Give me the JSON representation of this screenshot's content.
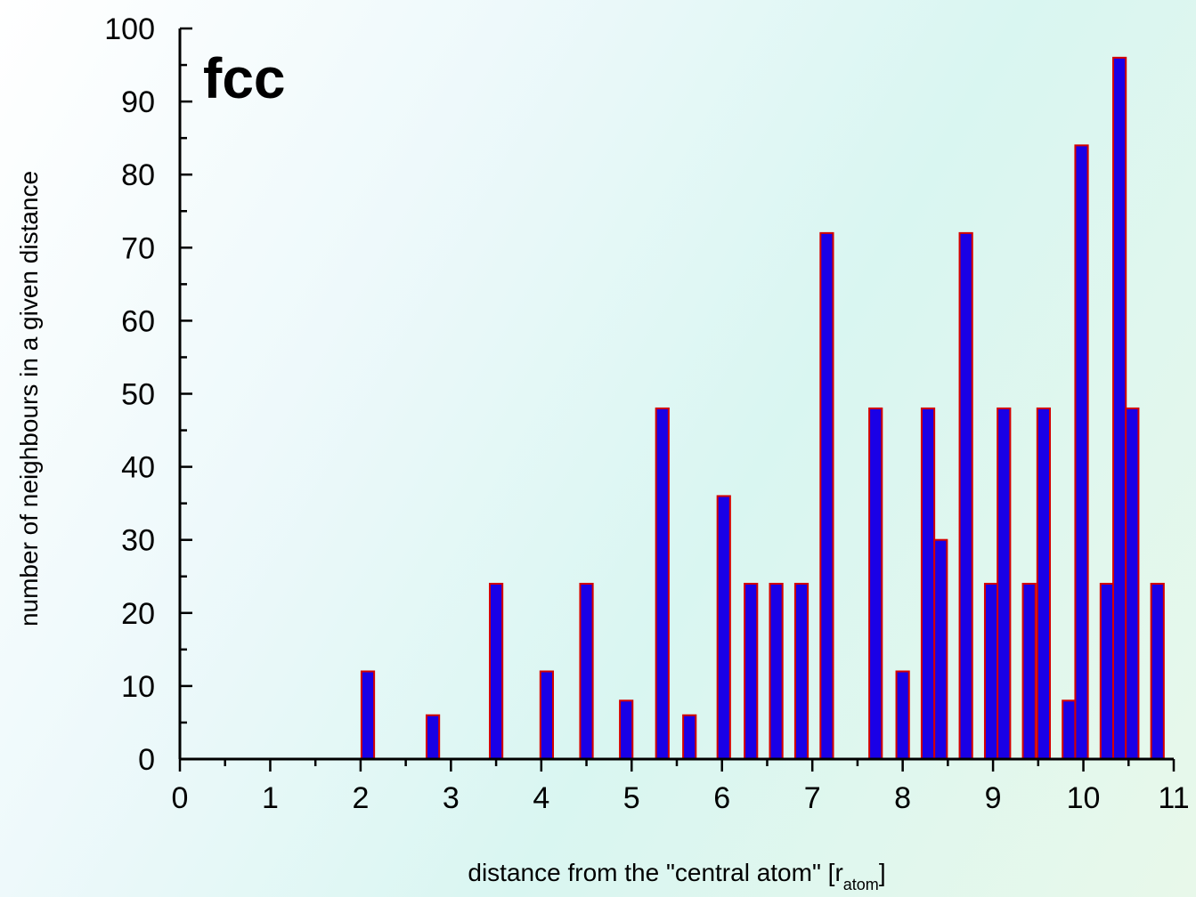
{
  "chart_data": {
    "type": "bar",
    "annotation": "fcc",
    "xlabel_main": "distance from the \"central atom\" [r",
    "xlabel_sub": "atom",
    "xlabel_end": "]",
    "ylabel": "number of neighbours in a given distance",
    "xlim": [
      0,
      11
    ],
    "ylim": [
      0,
      100
    ],
    "x_ticks": [
      "0",
      "1",
      "2",
      "3",
      "4",
      "5",
      "6",
      "7",
      "8",
      "9",
      "10",
      "11"
    ],
    "y_ticks": [
      "0",
      "10",
      "20",
      "30",
      "40",
      "50",
      "60",
      "70",
      "80",
      "90",
      "100"
    ],
    "bar_width": 0.14,
    "colors": {
      "fill": "#1a00e6",
      "edge": "#d40000"
    },
    "x": [
      2.08,
      2.8,
      3.5,
      4.06,
      4.5,
      4.94,
      5.34,
      5.64,
      6.02,
      6.32,
      6.6,
      6.88,
      7.16,
      7.7,
      8.0,
      8.28,
      8.42,
      8.7,
      8.98,
      9.12,
      9.4,
      9.56,
      9.84,
      9.98,
      10.26,
      10.4,
      10.54,
      10.82
    ],
    "values": [
      12,
      6,
      24,
      12,
      24,
      8,
      48,
      6,
      36,
      24,
      24,
      24,
      72,
      48,
      12,
      48,
      30,
      72,
      24,
      48,
      24,
      48,
      8,
      84,
      24,
      96,
      48,
      24
    ]
  }
}
